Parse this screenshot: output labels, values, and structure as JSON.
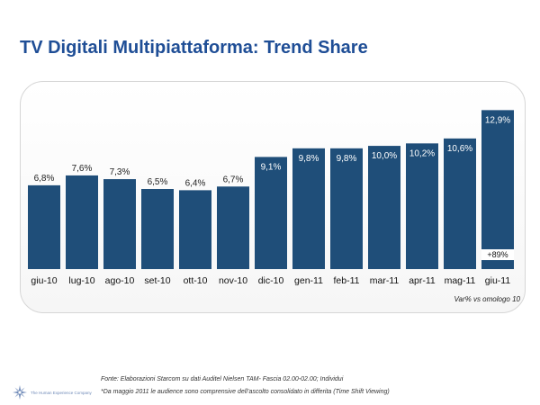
{
  "title": "TV Digitali Multipiattaforma: Trend Share",
  "chart_data": {
    "type": "bar",
    "categories": [
      "giu-10",
      "lug-10",
      "ago-10",
      "set-10",
      "ott-10",
      "nov-10",
      "dic-10",
      "gen-11",
      "feb-11",
      "mar-11",
      "apr-11",
      "mag-11",
      "giu-11"
    ],
    "values": [
      6.8,
      7.6,
      7.3,
      6.5,
      6.4,
      6.7,
      9.1,
      9.8,
      9.8,
      10.0,
      10.2,
      10.6,
      12.9
    ],
    "value_labels": [
      "6,8%",
      "7,6%",
      "7,3%",
      "6,5%",
      "6,4%",
      "6,7%",
      "9,1%",
      "9,8%",
      "9,8%",
      "10,0%",
      "10,2%",
      "10,6%",
      "12,9%"
    ],
    "ylim": [
      0,
      13
    ],
    "grid": false,
    "legend": "none",
    "bar_color": "#1f4e79",
    "annotation": {
      "category": "giu-11",
      "text": "+89%"
    },
    "footnote": "Var% vs omologo 10"
  },
  "source": "Fonte: Elaborazioni Starcom su dati Auditel Nielsen TAM- Fascia 02.00-02.00; Individui",
  "note": "*Da maggio 2011 le audience sono comprensive dell’ascolto consolidato in differita (Time Shift Viewing)",
  "logo_text": "The Human Experience Company",
  "colors": {
    "title": "#1f4e96",
    "bars": "#1f4e79",
    "logo": "#6f8ab8"
  }
}
